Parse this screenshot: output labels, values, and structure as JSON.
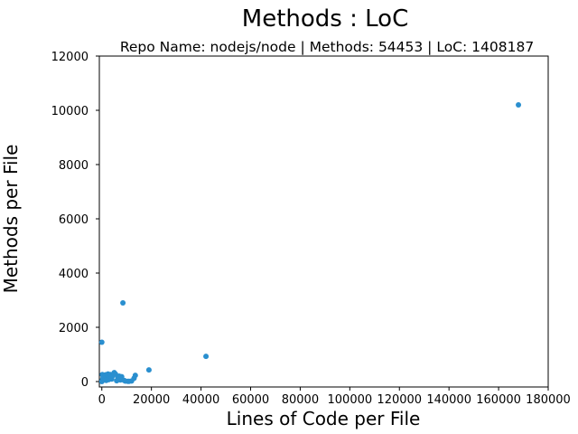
{
  "chart_data": {
    "type": "scatter",
    "title": "Methods : LoC",
    "subtitle": "Repo Name: nodejs/node | Methods: 54453 | LoC: 1408187",
    "xlabel": "Lines of Code per File",
    "ylabel": "Methods per File",
    "xlim": [
      -1000,
      180000
    ],
    "ylim": [
      -200,
      12000
    ],
    "xticks": [
      0,
      20000,
      40000,
      60000,
      80000,
      100000,
      120000,
      140000,
      160000,
      180000
    ],
    "yticks": [
      0,
      2000,
      4000,
      6000,
      8000,
      10000,
      12000
    ],
    "grid": false,
    "marker_color": "#2a8fcf",
    "points": [
      {
        "x": 168000,
        "y": 10200
      },
      {
        "x": 8500,
        "y": 2900
      },
      {
        "x": 42000,
        "y": 930
      },
      {
        "x": 19000,
        "y": 430
      },
      {
        "x": 0,
        "y": 1450
      },
      {
        "x": 13500,
        "y": 230
      },
      {
        "x": 13000,
        "y": 120
      },
      {
        "x": 12000,
        "y": 20
      },
      {
        "x": 10500,
        "y": 10
      },
      {
        "x": 9500,
        "y": 15
      },
      {
        "x": 8000,
        "y": 180
      },
      {
        "x": 7500,
        "y": 60
      },
      {
        "x": 6500,
        "y": 140
      },
      {
        "x": 5500,
        "y": 280
      },
      {
        "x": 5000,
        "y": 330
      },
      {
        "x": 4500,
        "y": 220
      },
      {
        "x": 4000,
        "y": 90
      },
      {
        "x": 3500,
        "y": 260
      },
      {
        "x": 3000,
        "y": 180
      },
      {
        "x": 2500,
        "y": 280
      },
      {
        "x": 2000,
        "y": 120
      },
      {
        "x": 1500,
        "y": 250
      },
      {
        "x": 1200,
        "y": 60
      },
      {
        "x": 800,
        "y": 200
      },
      {
        "x": 500,
        "y": 150
      },
      {
        "x": 300,
        "y": 80
      },
      {
        "x": 100,
        "y": 20
      },
      {
        "x": 200,
        "y": 260
      },
      {
        "x": 700,
        "y": 110
      },
      {
        "x": 1800,
        "y": 40
      },
      {
        "x": 2800,
        "y": 70
      },
      {
        "x": 3800,
        "y": 150
      },
      {
        "x": 6000,
        "y": 30
      },
      {
        "x": 7000,
        "y": 200
      },
      {
        "x": 9000,
        "y": 40
      },
      {
        "x": 11000,
        "y": 10
      },
      {
        "x": 0,
        "y": 0
      }
    ]
  }
}
